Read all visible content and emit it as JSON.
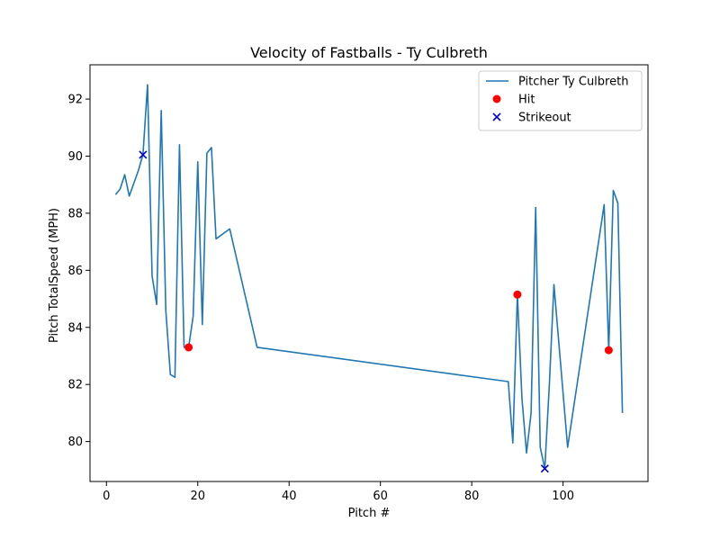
{
  "chart_data": {
    "type": "line",
    "title": "Velocity of Fastballs - Ty Culbreth",
    "xlabel": "Pitch #",
    "ylabel": "Pitch TotalSpeed (MPH)",
    "xlim": [
      -3.6,
      118.6
    ],
    "ylim": [
      78.6,
      93.2
    ],
    "xticks": [
      0,
      20,
      40,
      60,
      80,
      100
    ],
    "yticks": [
      80,
      82,
      84,
      86,
      88,
      90,
      92
    ],
    "grid": false,
    "legend_position": "top-right",
    "colors": {
      "line": "#1f77b4",
      "hit": "#ff0000",
      "strikeout": "#0000cc"
    },
    "series": [
      {
        "name": "Pitcher Ty Culbreth",
        "kind": "line",
        "x": [
          2,
          3,
          4,
          5,
          7,
          8,
          9,
          10,
          11,
          11.5,
          12,
          13,
          14,
          15,
          16,
          17,
          18,
          19,
          20,
          21,
          22,
          23,
          24,
          27,
          33,
          88,
          89,
          90,
          91,
          92,
          93,
          94,
          95,
          96,
          97,
          98,
          101,
          109,
          110,
          111,
          112,
          113
        ],
        "y": [
          88.65,
          88.85,
          89.35,
          88.6,
          89.5,
          90.05,
          92.5,
          85.8,
          84.8,
          88.3,
          91.6,
          84.6,
          82.35,
          82.25,
          90.4,
          83.3,
          83.3,
          84.4,
          89.8,
          84.1,
          90.1,
          90.3,
          87.1,
          87.45,
          83.3,
          82.1,
          79.95,
          85.15,
          81.5,
          79.6,
          81.0,
          88.2,
          79.8,
          79.05,
          82.0,
          85.5,
          79.8,
          88.3,
          83.2,
          88.8,
          88.35,
          81.0
        ]
      },
      {
        "name": "Hit",
        "kind": "scatter",
        "marker": "circle",
        "x": [
          18,
          90,
          110
        ],
        "y": [
          83.3,
          85.15,
          83.2
        ]
      },
      {
        "name": "Strikeout",
        "kind": "scatter",
        "marker": "x",
        "x": [
          8,
          96
        ],
        "y": [
          90.05,
          79.05
        ]
      }
    ]
  }
}
